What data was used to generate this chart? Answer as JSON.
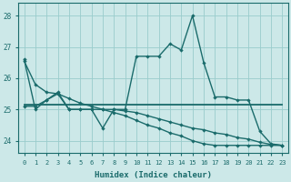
{
  "xlabel": "Humidex (Indice chaleur)",
  "xlim": [
    -0.5,
    23.5
  ],
  "ylim": [
    23.6,
    28.4
  ],
  "yticks": [
    24,
    25,
    26,
    27,
    28
  ],
  "xticks": [
    0,
    1,
    2,
    3,
    4,
    5,
    6,
    7,
    8,
    9,
    10,
    11,
    12,
    13,
    14,
    15,
    16,
    17,
    18,
    19,
    20,
    21,
    22,
    23
  ],
  "bg_color": "#cce8e8",
  "grid_color": "#99cccc",
  "line_color": "#1a6b6b",
  "lines": [
    {
      "x": [
        0,
        1,
        2,
        3,
        4,
        5,
        6,
        7,
        8,
        9,
        10,
        11,
        12,
        13,
        14,
        15,
        16,
        17,
        18,
        19,
        20,
        21,
        22,
        23
      ],
      "y": [
        26.6,
        25.0,
        25.3,
        25.55,
        25.0,
        25.0,
        25.0,
        24.4,
        25.0,
        25.0,
        26.7,
        26.7,
        26.7,
        27.1,
        26.9,
        28.0,
        26.5,
        25.4,
        25.4,
        25.3,
        25.3,
        24.3,
        23.9,
        23.85
      ],
      "marker": "D",
      "lw": 1.0
    },
    {
      "x": [
        0,
        1,
        2,
        3,
        4,
        5,
        6,
        7,
        8,
        9,
        10,
        11,
        12,
        13,
        14,
        15,
        16,
        17,
        18,
        19,
        20,
        21,
        22,
        23
      ],
      "y": [
        25.15,
        25.15,
        25.15,
        25.15,
        25.15,
        25.15,
        25.15,
        25.15,
        25.15,
        25.15,
        25.15,
        25.15,
        25.15,
        25.15,
        25.15,
        25.15,
        25.15,
        25.15,
        25.15,
        25.15,
        25.15,
        25.15,
        25.15,
        25.15
      ],
      "marker": null,
      "lw": 1.3
    },
    {
      "x": [
        0,
        1,
        2,
        3,
        4,
        5,
        6,
        7,
        8,
        9,
        10,
        11,
        12,
        13,
        14,
        15,
        16,
        17,
        18,
        19,
        20,
        21,
        22,
        23
      ],
      "y": [
        26.55,
        25.8,
        25.55,
        25.5,
        25.35,
        25.2,
        25.1,
        25.0,
        24.9,
        24.8,
        24.65,
        24.5,
        24.4,
        24.25,
        24.15,
        24.0,
        23.9,
        23.85,
        23.85,
        23.85,
        23.85,
        23.85,
        23.85,
        23.85
      ],
      "marker": "D",
      "lw": 1.0
    },
    {
      "x": [
        0,
        1,
        2,
        3,
        4,
        5,
        6,
        7,
        8,
        9,
        10,
        11,
        12,
        13,
        14,
        15,
        16,
        17,
        18,
        19,
        20,
        21,
        22,
        23
      ],
      "y": [
        25.1,
        25.1,
        25.3,
        25.5,
        25.0,
        25.0,
        25.0,
        25.0,
        25.0,
        24.95,
        24.9,
        24.8,
        24.7,
        24.6,
        24.5,
        24.4,
        24.35,
        24.25,
        24.2,
        24.1,
        24.05,
        23.95,
        23.88,
        23.85
      ],
      "marker": "D",
      "lw": 1.0
    }
  ]
}
